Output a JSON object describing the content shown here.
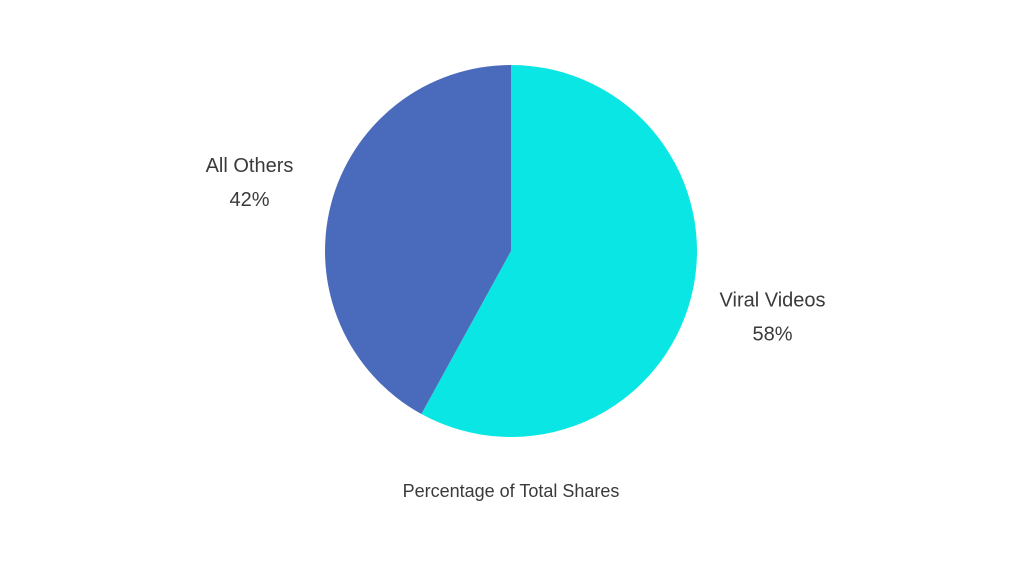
{
  "chart_data": {
    "type": "pie",
    "title": "Percentage of Total Shares",
    "categories": [
      "Viral Videos",
      "All Others"
    ],
    "values": [
      58,
      42
    ],
    "value_labels": [
      "58%",
      "42%"
    ],
    "colors": [
      "#0ae6e3",
      "#4a6bbb"
    ]
  }
}
